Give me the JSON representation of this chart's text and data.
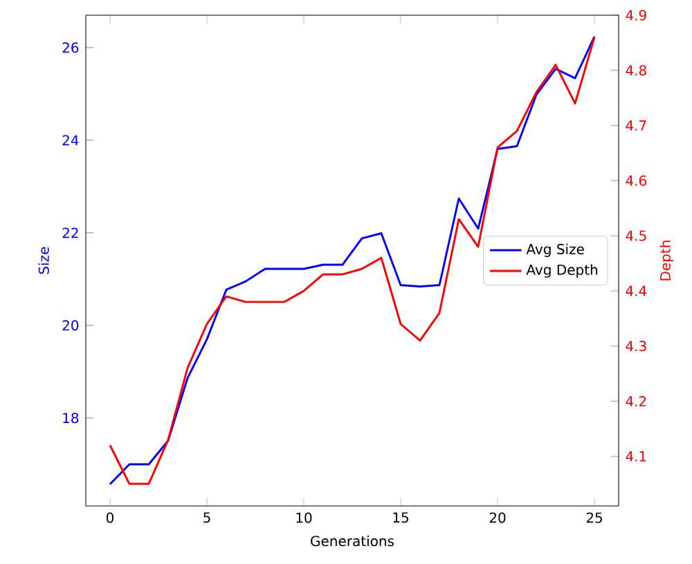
{
  "chart_data": {
    "type": "line",
    "xlabel": "Generations",
    "ylabel": "Size",
    "y2label": "Depth",
    "x": [
      0,
      1,
      2,
      3,
      4,
      5,
      6,
      7,
      8,
      9,
      10,
      11,
      12,
      13,
      14,
      15,
      16,
      17,
      18,
      19,
      20,
      21,
      22,
      23,
      24,
      25
    ],
    "xlim": [
      -1.25,
      26.25
    ],
    "xticks": [
      0,
      5,
      10,
      15,
      20,
      25
    ],
    "ylim": [
      16.1,
      26.7
    ],
    "yticks": [
      18,
      20,
      22,
      24,
      26
    ],
    "y2lim": [
      4.01,
      4.9
    ],
    "y2ticks": [
      4.1,
      4.2,
      4.3,
      4.4,
      4.5,
      4.6,
      4.7,
      4.8,
      4.9
    ],
    "legend": "right",
    "series": [
      {
        "name": "Avg Size",
        "color": "#0000ff",
        "values": [
          16.57,
          17.0,
          17.0,
          17.51,
          18.86,
          19.7,
          20.77,
          20.95,
          21.22,
          21.22,
          21.22,
          21.31,
          21.31,
          21.88,
          21.99,
          20.87,
          20.84,
          20.87,
          22.74,
          22.09,
          23.81,
          23.87,
          24.98,
          25.54,
          25.34,
          26.24
        ]
      },
      {
        "name": "Avg Depth",
        "color": "#ff0000",
        "axis": "y2",
        "values": [
          4.12,
          4.05,
          4.05,
          4.13,
          4.26,
          4.34,
          4.39,
          4.38,
          4.38,
          4.38,
          4.4,
          4.43,
          4.43,
          4.44,
          4.46,
          4.34,
          4.31,
          4.36,
          4.53,
          4.48,
          4.66,
          4.69,
          4.76,
          4.81,
          4.74,
          4.86
        ]
      }
    ]
  }
}
